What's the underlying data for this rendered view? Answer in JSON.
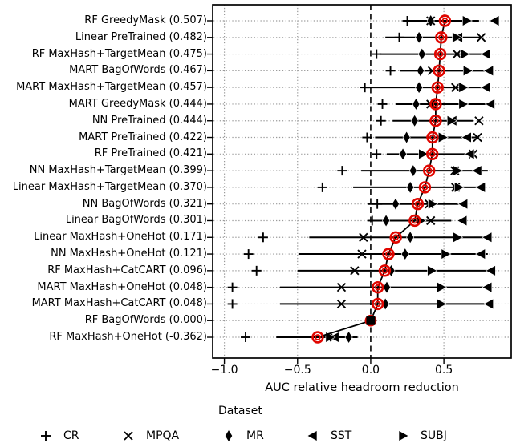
{
  "chart_data": {
    "type": "scatter",
    "subtype": "horizontal dot plot with per-row range lines, per-dataset markers and mean markers",
    "title": "",
    "xlabel": "AUC relative headroom reduction",
    "xlim": [
      -1.08,
      0.96
    ],
    "x_ticks": [
      {
        "value": -1.0,
        "label": "−1.0"
      },
      {
        "value": -0.5,
        "label": "−0.5"
      },
      {
        "value": 0.0,
        "label": "0.0"
      },
      {
        "value": 0.5,
        "label": "0.5"
      }
    ],
    "grid": "dotted gray vertical lines at ticks and dotted gray horizontal line per row; dashed black vertical line at 0.0",
    "legend_title": "Dataset",
    "datasets": [
      "CR",
      "MPQA",
      "MR",
      "SST",
      "SUBJ"
    ],
    "series_markers": {
      "CR": "plus",
      "MPQA": "x",
      "MR": "thin-diamond",
      "SST": "triangle-left",
      "SUBJ": "triangle-right"
    },
    "marker_color": "#000000",
    "mean_color": "#e10600",
    "mean_line": "black polyline connecting row means",
    "rows": [
      {
        "label": "RF GreedyMask (0.507)",
        "mean": 0.507,
        "mean_marker": "circle",
        "range": [
          0.23,
          0.74
        ],
        "values": {
          "CR": 0.25,
          "MPQA": 0.41,
          "MR": 0.41,
          "SST": 0.85,
          "SUBJ": 0.655
        }
      },
      {
        "label": "Linear PreTrained (0.482)",
        "mean": 0.482,
        "mean_marker": "circle",
        "range": [
          0.1,
          0.755
        ],
        "values": {
          "CR": 0.195,
          "MPQA": 0.755,
          "MR": 0.33,
          "SST": 0.6,
          "SUBJ": 0.585
        }
      },
      {
        "label": "RF MaxHash+TargetMean (0.475)",
        "mean": 0.475,
        "mean_marker": "circle",
        "range": [
          0.06,
          0.79
        ],
        "values": {
          "CR": 0.04,
          "MPQA": 0.59,
          "MR": 0.35,
          "SST": 0.79,
          "SUBJ": 0.64
        }
      },
      {
        "label": "MART BagOfWords (0.467)",
        "mean": 0.467,
        "mean_marker": "circle",
        "range": [
          0.2,
          0.81
        ],
        "values": {
          "CR": 0.135,
          "MPQA": 0.42,
          "MR": 0.34,
          "SST": 0.81,
          "SUBJ": 0.66
        }
      },
      {
        "label": "MART MaxHash+TargetMean (0.457)",
        "mean": 0.457,
        "mean_marker": "circle",
        "range": [
          -0.04,
          0.79
        ],
        "values": {
          "CR": -0.04,
          "MPQA": 0.58,
          "MR": 0.33,
          "SST": 0.79,
          "SUBJ": 0.63
        }
      },
      {
        "label": "MART GreedyMask (0.444)",
        "mean": 0.444,
        "mean_marker": "circle",
        "range": [
          0.17,
          0.82
        ],
        "values": {
          "CR": 0.08,
          "MPQA": 0.41,
          "MR": 0.31,
          "SST": 0.82,
          "SUBJ": 0.63
        }
      },
      {
        "label": "NN PreTrained (0.444)",
        "mean": 0.444,
        "mean_marker": "circle",
        "range": [
          0.15,
          0.7
        ],
        "values": {
          "CR": 0.07,
          "MPQA": 0.74,
          "MR": 0.3,
          "SST": 0.56,
          "SUBJ": 0.55
        }
      },
      {
        "label": "MART PreTrained (0.422)",
        "mean": 0.422,
        "mean_marker": "circle",
        "range": [
          0.03,
          0.74
        ],
        "values": {
          "CR": -0.025,
          "MPQA": 0.73,
          "MR": 0.245,
          "SST": 0.66,
          "SUBJ": 0.49
        }
      },
      {
        "label": "RF PreTrained (0.421)",
        "mean": 0.421,
        "mean_marker": "circle",
        "range": [
          0.11,
          0.71
        ],
        "values": {
          "CR": 0.04,
          "MPQA": 0.7,
          "MR": 0.22,
          "SST": 0.68,
          "SUBJ": 0.355
        }
      },
      {
        "label": "NN MaxHash+TargetMean (0.399)",
        "mean": 0.399,
        "mean_marker": "circle",
        "range": [
          -0.065,
          0.8
        ],
        "values": {
          "CR": -0.195,
          "MPQA": 0.575,
          "MR": 0.29,
          "SST": 0.73,
          "SUBJ": 0.59
        }
      },
      {
        "label": "Linear MaxHash+TargetMean (0.370)",
        "mean": 0.37,
        "mean_marker": "circle",
        "range": [
          -0.12,
          0.79
        ],
        "values": {
          "CR": -0.33,
          "MPQA": 0.58,
          "MR": 0.27,
          "SST": 0.755,
          "SUBJ": 0.6
        }
      },
      {
        "label": "NN BagOfWords (0.321)",
        "mean": 0.321,
        "mean_marker": "circle",
        "range": [
          -0.02,
          0.66
        ],
        "values": {
          "CR": 0.045,
          "MPQA": 0.4,
          "MR": 0.17,
          "SST": 0.635,
          "SUBJ": 0.42
        }
      },
      {
        "label": "Linear BagOfWords (0.301)",
        "mean": 0.301,
        "mean_marker": "circle",
        "range": [
          0.01,
          0.55
        ],
        "values": {
          "CR": 0.01,
          "MPQA": 0.41,
          "MR": 0.105,
          "SST": 0.63,
          "SUBJ": 0.34
        }
      },
      {
        "label": "Linear MaxHash+OneHot (0.171)",
        "mean": 0.171,
        "mean_marker": "circle",
        "range": [
          -0.42,
          0.8
        ],
        "values": {
          "CR": -0.735,
          "MPQA": -0.05,
          "MR": 0.27,
          "SST": 0.8,
          "SUBJ": 0.59
        }
      },
      {
        "label": "NN MaxHash+OneHot (0.121)",
        "mean": 0.121,
        "mean_marker": "circle",
        "range": [
          -0.49,
          0.8
        ],
        "values": {
          "CR": -0.835,
          "MPQA": -0.06,
          "MR": 0.235,
          "SST": 0.755,
          "SUBJ": 0.51
        }
      },
      {
        "label": "RF MaxHash+CatCART (0.096)",
        "mean": 0.096,
        "mean_marker": "circle",
        "range": [
          -0.5,
          0.825
        ],
        "values": {
          "CR": -0.78,
          "MPQA": -0.11,
          "MR": 0.14,
          "SST": 0.825,
          "SUBJ": 0.415
        }
      },
      {
        "label": "MART MaxHash+OneHot (0.048)",
        "mean": 0.048,
        "mean_marker": "circle",
        "range": [
          -0.62,
          0.8
        ],
        "values": {
          "CR": -0.945,
          "MPQA": -0.2,
          "MR": 0.11,
          "SST": 0.8,
          "SUBJ": 0.48
        }
      },
      {
        "label": "MART MaxHash+CatCART (0.048)",
        "mean": 0.048,
        "mean_marker": "circle",
        "range": [
          -0.62,
          0.81
        ],
        "values": {
          "CR": -0.945,
          "MPQA": -0.2,
          "MR": 0.1,
          "SST": 0.81,
          "SUBJ": 0.48
        }
      },
      {
        "label": "RF BagOfWords (0.000)",
        "mean": 0.0,
        "mean_marker": "square",
        "range": null,
        "values": {
          "CR": 0.0,
          "MPQA": 0.0,
          "MR": 0.0,
          "SST": 0.0,
          "SUBJ": 0.0
        }
      },
      {
        "label": "RF MaxHash+OneHot (-0.362)",
        "mean": -0.362,
        "mean_marker": "circle",
        "range": [
          -0.645,
          -0.09
        ],
        "values": {
          "CR": -0.855,
          "MPQA": -0.25,
          "MR": -0.15,
          "SST": -0.245,
          "SUBJ": -0.28
        }
      }
    ]
  }
}
